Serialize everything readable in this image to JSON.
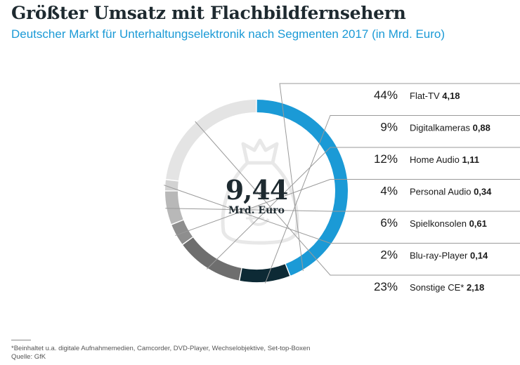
{
  "title": "Größter Umsatz mit Flachbildfernsehern",
  "subtitle": "Deutscher Markt für Unterhaltungselektronik nach Segmenten 2017 (in Mrd. Euro)",
  "center": {
    "value": "9,44",
    "unit": "Mrd. Euro"
  },
  "footnote": {
    "note": "*Beinhaltet u.a. digitale Aufnahmemedien, Camcorder, DVD-Player, Wechselobjektive, Set-top-Boxen",
    "source": "Quelle: GfK"
  },
  "chart_data": {
    "type": "pie",
    "variant": "donut",
    "title": "Größter Umsatz mit Flachbildfernsehern",
    "subtitle": "Deutscher Markt für Unterhaltungselektronik nach Segmenten 2017 (in Mrd. Euro)",
    "total": 9.44,
    "total_label": "9,44",
    "unit": "Mrd. Euro",
    "segments": [
      {
        "name": "Flat-TV",
        "percent": 44,
        "percent_label": "44%",
        "value": 4.18,
        "value_label": "4,18",
        "color": "#1b9ad6"
      },
      {
        "name": "Digitalkameras",
        "percent": 9,
        "percent_label": "9%",
        "value": 0.88,
        "value_label": "0,88",
        "color": "#0d2a35"
      },
      {
        "name": "Home Audio",
        "percent": 12,
        "percent_label": "12%",
        "value": 1.11,
        "value_label": "1,11",
        "color": "#6e6e6e"
      },
      {
        "name": "Personal Audio",
        "percent": 4,
        "percent_label": "4%",
        "value": 0.34,
        "value_label": "0,34",
        "color": "#8e8e8e"
      },
      {
        "name": "Spielkonsolen",
        "percent": 6,
        "percent_label": "6%",
        "value": 0.61,
        "value_label": "0,61",
        "color": "#b8b8b8"
      },
      {
        "name": "Blu-ray-Player",
        "percent": 2,
        "percent_label": "2%",
        "value": 0.14,
        "value_label": "0,14",
        "color": "#d2d2d2"
      },
      {
        "name": "Sonstige CE*",
        "percent": 23,
        "percent_label": "23%",
        "value": 2.18,
        "value_label": "2,18",
        "color": "#e4e4e4"
      }
    ]
  }
}
